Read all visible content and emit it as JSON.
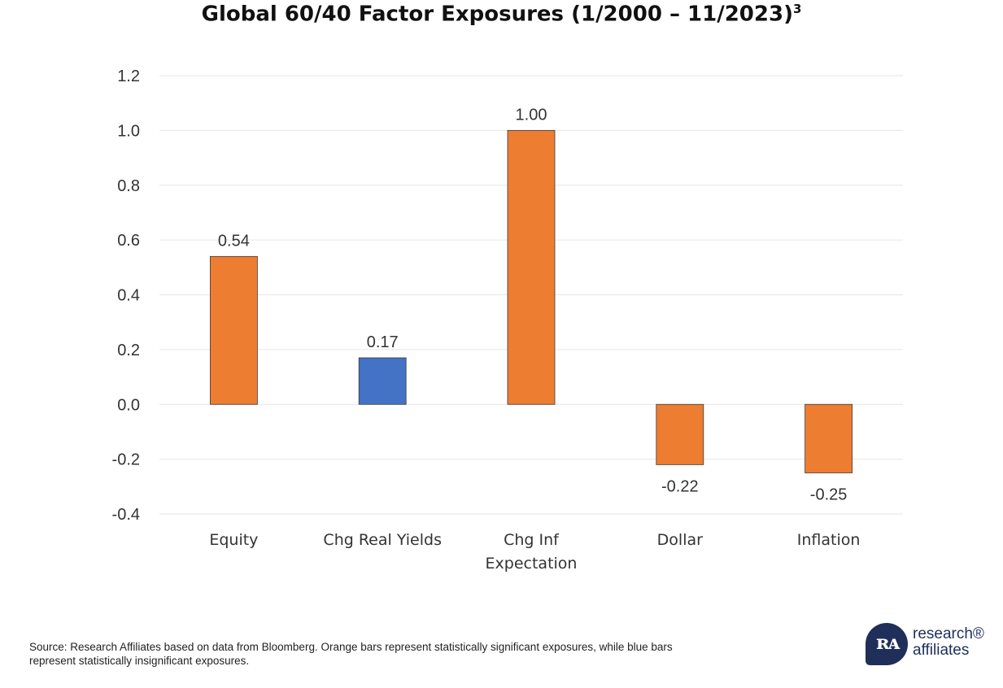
{
  "title": "Global 60/40 Factor Exposures (1/2000 – 11/2023)",
  "title_superscript": "3",
  "colors": {
    "significant": "#ed7d31",
    "insignificant": "#4472c4",
    "grid": "#e6e6e6",
    "text": "#333333"
  },
  "chart_data": {
    "type": "bar",
    "title": "Global 60/40 Factor Exposures (1/2000 – 11/2023)",
    "categories": [
      "Equity",
      "Chg Real Yields",
      "Chg Inf Expectation",
      "Dollar",
      "Inflation"
    ],
    "category_lines": [
      [
        "Equity"
      ],
      [
        "Chg Real Yields"
      ],
      [
        "Chg Inf",
        "Expectation"
      ],
      [
        "Dollar"
      ],
      [
        "Inflation"
      ]
    ],
    "values": [
      0.54,
      0.17,
      1.0,
      -0.22,
      -0.25
    ],
    "value_labels": [
      "0.54",
      "0.17",
      "1.00",
      "-0.22",
      "-0.25"
    ],
    "bar_colors": [
      "#ed7d31",
      "#4472c4",
      "#ed7d31",
      "#ed7d31",
      "#ed7d31"
    ],
    "significance": [
      "significant",
      "insignificant",
      "significant",
      "significant",
      "significant"
    ],
    "ylim": [
      -0.4,
      1.2
    ],
    "yticks": [
      -0.4,
      -0.2,
      0.0,
      0.2,
      0.4,
      0.6,
      0.8,
      1.0,
      1.2
    ],
    "ytick_labels": [
      "-0.4",
      "-0.2",
      "0.0",
      "0.2",
      "0.4",
      "0.6",
      "0.8",
      "1.0",
      "1.2"
    ],
    "xlabel": "",
    "ylabel": "",
    "grid": true,
    "legend": "none"
  },
  "source_note": "Source: Research Affiliates based on data from Bloomberg. Orange bars represent statistically significant exposures, while blue bars represent statistically insignificant exposures.",
  "logo": {
    "mark": "ʀᴀ",
    "line1": "research®",
    "line2": "affiliates"
  }
}
